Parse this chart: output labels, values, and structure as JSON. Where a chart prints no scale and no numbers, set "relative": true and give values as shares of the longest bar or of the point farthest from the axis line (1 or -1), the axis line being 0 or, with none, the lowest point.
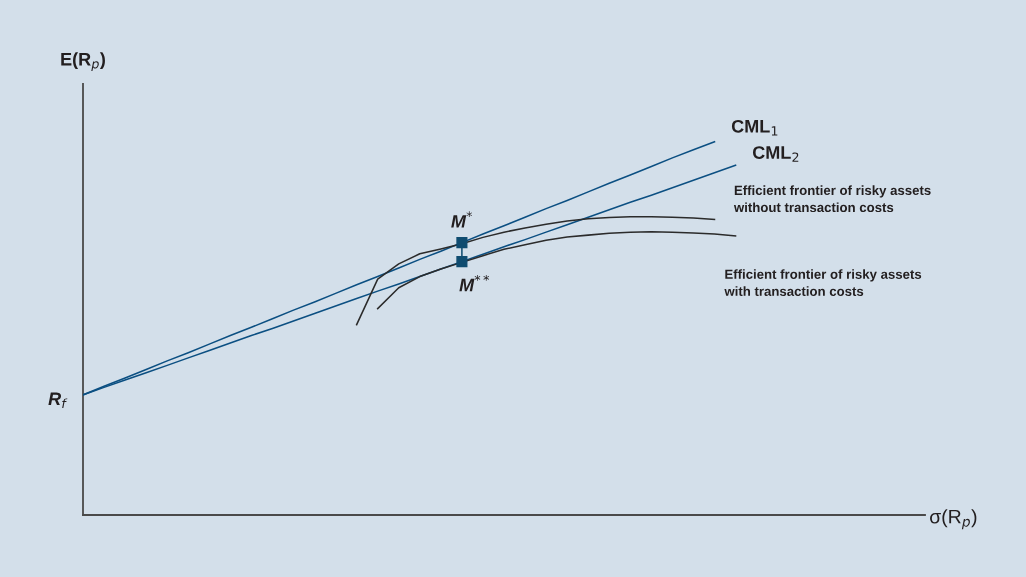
{
  "chart_data": {
    "type": "line",
    "relative": true,
    "xlabel": "σ(R$_{p}$)",
    "ylabel": "E(R$_{p}$)",
    "categories": [
      null,
      null,
      null,
      null,
      null,
      null,
      null,
      null,
      null,
      null,
      null,
      null,
      null,
      null,
      null,
      null,
      null,
      null,
      null,
      null,
      null,
      null,
      null,
      null,
      null,
      null,
      null,
      null,
      null,
      null,
      null,
      null,
      null,
      null,
      null,
      null,
      null,
      null,
      null,
      null,
      null
    ],
    "series": [
      {
        "name": "CML$_{1}$",
        "color": "#0b4f82",
        "values": [
          0.322,
          0.345,
          0.367,
          0.39,
          0.413,
          0.435,
          0.458,
          0.481,
          0.503,
          0.526,
          0.549,
          0.571,
          0.594,
          0.617,
          0.639,
          0.662,
          0.685,
          0.707,
          0.73,
          0.753,
          0.775,
          0.798,
          0.821,
          0.843,
          0.866,
          0.889,
          0.911,
          0.934,
          0.957,
          0.979,
          1.0,
          null,
          null,
          null,
          null,
          null,
          null,
          null,
          null,
          null,
          null
        ]
      },
      {
        "name": "CML$_{2}$",
        "color": "#0b4f82",
        "values": [
          0.322,
          0.342,
          0.362,
          0.381,
          0.401,
          0.421,
          0.441,
          0.461,
          0.481,
          0.5,
          0.52,
          0.54,
          0.56,
          0.58,
          0.6,
          0.619,
          0.639,
          0.659,
          0.679,
          0.699,
          0.719,
          0.738,
          0.758,
          0.778,
          0.798,
          0.818,
          0.838,
          0.857,
          0.877,
          0.897,
          0.917,
          0.937,
          null,
          null,
          null,
          null,
          null,
          null,
          null,
          null,
          null
        ]
      },
      {
        "name": "Efficient frontier of risky assets\nwithout transaction costs",
        "color": "#2b2b2b",
        "values": [
          null,
          null,
          null,
          null,
          null,
          null,
          null,
          null,
          null,
          null,
          null,
          null,
          null,
          0.51,
          0.632,
          0.673,
          0.7,
          0.713,
          0.727,
          0.744,
          0.758,
          0.769,
          0.779,
          0.788,
          0.794,
          0.797,
          0.799,
          0.799,
          0.798,
          0.796,
          0.792,
          null,
          null,
          null,
          null,
          null,
          null,
          null,
          null,
          null,
          null
        ]
      },
      {
        "name": "Efficient frontier of risky assets\nwith transaction costs",
        "color": "#2b2b2b",
        "values": [
          null,
          null,
          null,
          null,
          null,
          null,
          null,
          null,
          null,
          null,
          null,
          null,
          null,
          null,
          0.553,
          0.609,
          0.639,
          0.659,
          0.677,
          0.695,
          0.712,
          0.724,
          0.736,
          0.745,
          0.75,
          0.755,
          0.758,
          0.759,
          0.758,
          0.756,
          0.753,
          0.748,
          null,
          null,
          null,
          null,
          null,
          null,
          null,
          null,
          null
        ]
      },
      {
        "name": "M$^{*}$",
        "marker": "square",
        "color": "#0f4c70",
        "values": [
          null,
          null,
          null,
          null,
          null,
          null,
          null,
          null,
          null,
          null,
          null,
          null,
          null,
          null,
          null,
          null,
          null,
          null,
          0.73,
          null,
          null,
          null,
          null,
          null,
          null,
          null,
          null,
          null,
          null,
          null,
          null,
          null,
          null,
          null,
          null,
          null,
          null,
          null,
          null,
          null,
          null
        ]
      },
      {
        "name": "M$^{**}$",
        "marker": "square",
        "color": "#0f4c70",
        "values": [
          null,
          null,
          null,
          null,
          null,
          null,
          null,
          null,
          null,
          null,
          null,
          null,
          null,
          null,
          null,
          null,
          null,
          null,
          0.679,
          null,
          null,
          null,
          null,
          null,
          null,
          null,
          null,
          null,
          null,
          null,
          null,
          null,
          null,
          null,
          null,
          null,
          null,
          null,
          null,
          null,
          null
        ]
      }
    ],
    "annotations": [
      "R$_{f}$"
    ]
  }
}
